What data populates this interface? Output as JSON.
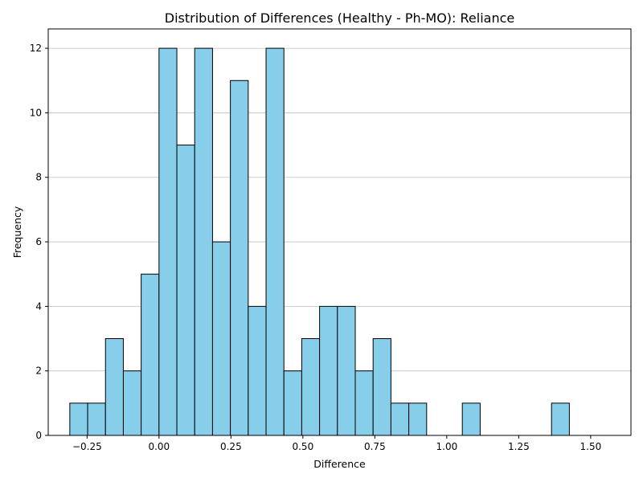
{
  "chart_data": {
    "type": "bar",
    "title": "Distribution of Differences (Healthy - Ph-MO): Reliance",
    "xlabel": "Difference",
    "ylabel": "Frequency",
    "xlim": [
      -0.385,
      1.64
    ],
    "ylim": [
      0,
      12.6
    ],
    "x_ticks": [
      -0.25,
      0.0,
      0.25,
      0.5,
      0.75,
      1.0,
      1.25,
      1.5
    ],
    "x_tick_labels": [
      "−0.25",
      "0.00",
      "0.25",
      "0.50",
      "0.75",
      "1.00",
      "1.25",
      "1.50"
    ],
    "y_ticks": [
      0,
      2,
      4,
      6,
      8,
      10,
      12
    ],
    "y_tick_labels": [
      "0",
      "2",
      "4",
      "6",
      "8",
      "10",
      "12"
    ],
    "bin_start": -0.31,
    "bin_width": 0.062,
    "values": [
      1,
      1,
      3,
      2,
      5,
      12,
      9,
      12,
      6,
      11,
      4,
      12,
      2,
      3,
      4,
      4,
      2,
      3,
      1,
      1,
      0,
      0,
      1,
      0,
      0,
      0,
      0,
      1
    ],
    "grid": "y-axis",
    "colors": {
      "bar_fill": "#87ceeb",
      "bar_edge": "#000000",
      "grid": "#c0c0c0",
      "axis": "#000000"
    }
  }
}
